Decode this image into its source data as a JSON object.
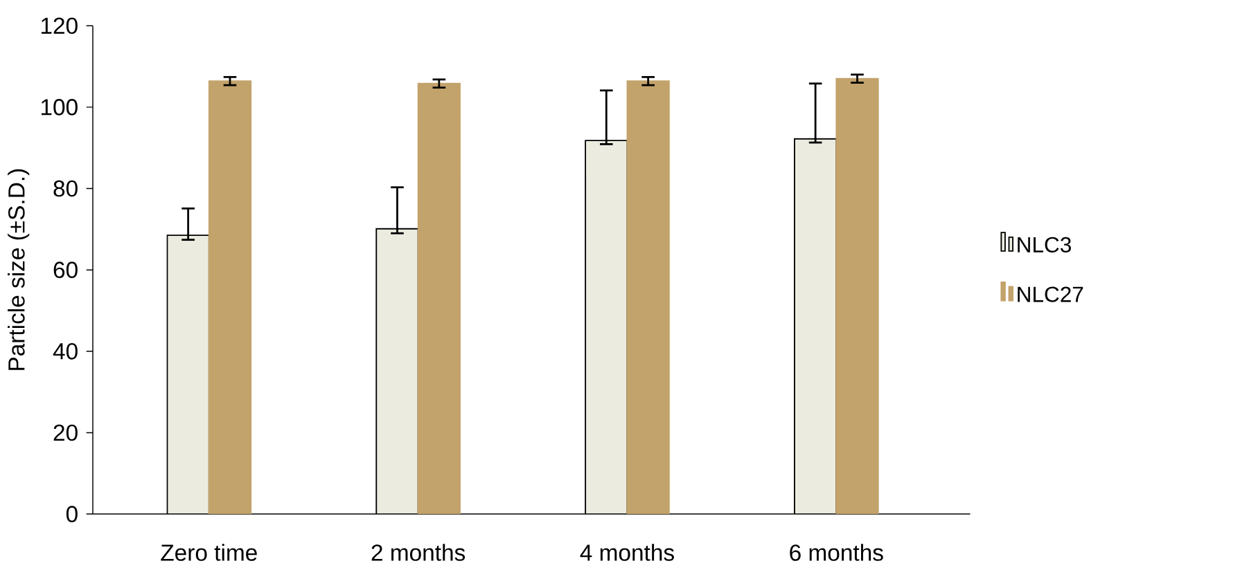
{
  "chart_data": {
    "type": "bar",
    "ylabel": "Particle size (±S.D.)",
    "categories": [
      "Zero time",
      "2 months",
      "4 months",
      "6 months"
    ],
    "series": [
      {
        "name": "NLC3",
        "color": "#ecebe0",
        "values": [
          68.5,
          70.1,
          91.8,
          92.2
        ],
        "errors": [
          [
            67.4,
            75.1
          ],
          [
            69.0,
            80.3
          ],
          [
            90.9,
            104.1
          ],
          [
            91.3,
            105.8
          ]
        ]
      },
      {
        "name": "NLC27",
        "color": "#c2a36b",
        "values": [
          106.4,
          105.8,
          106.4,
          107.0
        ],
        "errors": [
          [
            105.4,
            107.4
          ],
          [
            104.8,
            106.8
          ],
          [
            105.4,
            107.4
          ],
          [
            106.0,
            108.0
          ]
        ]
      }
    ],
    "ylim": [
      0,
      120
    ],
    "yticks": [
      0,
      20,
      40,
      60,
      80,
      100,
      120
    ],
    "grid": false,
    "legend": "right"
  }
}
